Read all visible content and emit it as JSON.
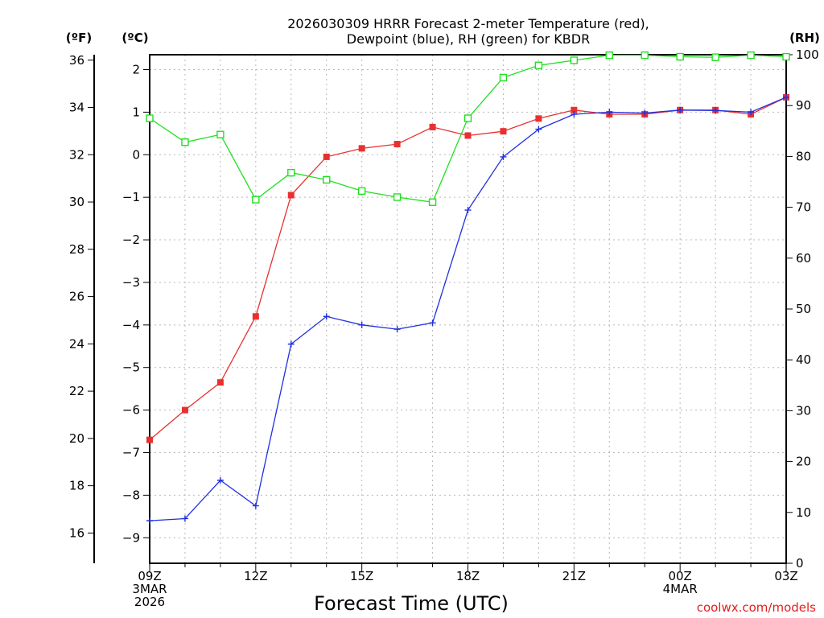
{
  "chart_data": {
    "type": "line",
    "title": "2026030309 HRRR Forecast 2-meter Temperature (red),",
    "subtitle": "Dewpoint (blue), RH (green) for KBDR",
    "xlabel": "Forecast Time (UTC)",
    "y_unit_f": "(ºF)",
    "y_unit_c": "(ºC)",
    "y_unit_rh": "(RH)",
    "credit": "coolwx.com/models",
    "x_tick_labels": [
      {
        "hour": 0,
        "lines": [
          "09Z",
          "3MAR",
          "2026"
        ]
      },
      {
        "hour": 3,
        "lines": [
          "12Z"
        ]
      },
      {
        "hour": 6,
        "lines": [
          "15Z"
        ]
      },
      {
        "hour": 9,
        "lines": [
          "18Z"
        ]
      },
      {
        "hour": 12,
        "lines": [
          "21Z"
        ]
      },
      {
        "hour": 15,
        "lines": [
          "00Z",
          "4MAR"
        ]
      },
      {
        "hour": 18,
        "lines": [
          "03Z"
        ]
      }
    ],
    "xlim": [
      0,
      18
    ],
    "ylim_c": [
      -9.6,
      2.35
    ],
    "ylim_rh": [
      0,
      100
    ],
    "y_ticks_c": [
      "−9",
      "−8",
      "−7",
      "−6",
      "−5",
      "−4",
      "−3",
      "−2",
      "−1",
      "0",
      "1",
      "2"
    ],
    "y_ticks_f": [
      "16",
      "18",
      "20",
      "22",
      "24",
      "26",
      "28",
      "30",
      "32",
      "34",
      "36"
    ],
    "y_ticks_rh": [
      "0",
      "10",
      "20",
      "30",
      "40",
      "50",
      "60",
      "70",
      "80",
      "90",
      "100"
    ],
    "series": [
      {
        "name": "Temperature",
        "units": "°C",
        "color": "#e83030",
        "marker": "square-filled",
        "values": [
          -6.7,
          -6.0,
          -5.35,
          -3.8,
          -0.95,
          -0.05,
          0.15,
          0.25,
          0.65,
          0.45,
          0.55,
          0.85,
          1.05,
          0.95,
          0.95,
          1.05,
          1.05,
          0.95,
          1.35
        ]
      },
      {
        "name": "Dewpoint",
        "units": "°C",
        "color": "#2030e0",
        "marker": "plus",
        "values": [
          -8.6,
          -8.55,
          -7.65,
          -8.25,
          -4.45,
          -3.8,
          -4.0,
          -4.1,
          -3.95,
          -1.3,
          -0.05,
          0.6,
          0.95,
          1.0,
          0.98,
          1.05,
          1.04,
          1.0,
          1.35
        ]
      },
      {
        "name": "RH",
        "units": "%",
        "color": "#20e020",
        "marker": "square-open",
        "values": [
          87.5,
          82.8,
          84.3,
          71.5,
          76.8,
          75.4,
          73.2,
          72.0,
          71.0,
          87.5,
          95.5,
          97.9,
          98.9,
          99.9,
          99.9,
          99.6,
          99.5,
          99.9,
          99.6
        ]
      }
    ],
    "grid": true
  }
}
